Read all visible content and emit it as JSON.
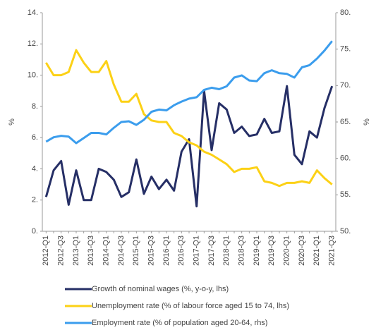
{
  "chart_data": {
    "type": "line",
    "categories": [
      "2012-Q1",
      null,
      "2012-Q3",
      null,
      "2013-Q1",
      null,
      "2013-Q3",
      null,
      "2014-Q1",
      null,
      "2014-Q3",
      null,
      "2015-Q1",
      null,
      "2015-Q3",
      null,
      "2016-Q1",
      null,
      "2016-Q3",
      null,
      "2017-Q1",
      null,
      "2017-Q3",
      null,
      "2018-Q1",
      null,
      "2018-Q3",
      null,
      "2019-Q1",
      null,
      "2019-Q3",
      null,
      "2020-Q1",
      null,
      "2020-Q3",
      null,
      "2021-Q1",
      null,
      "2021-Q3"
    ],
    "ylabel": "%",
    "y2label": "%",
    "ylim": [
      0,
      14
    ],
    "yticks": [
      {
        "value": 0,
        "label": "0."
      },
      {
        "value": 2,
        "label": "2."
      },
      {
        "value": 4,
        "label": "4."
      },
      {
        "value": 6,
        "label": "6."
      },
      {
        "value": 8,
        "label": "8."
      },
      {
        "value": 10,
        "label": "10."
      },
      {
        "value": 12,
        "label": "12."
      },
      {
        "value": 14,
        "label": "14."
      }
    ],
    "y2lim": [
      50,
      80
    ],
    "y2ticks": [
      {
        "value": 50,
        "label": "50."
      },
      {
        "value": 55,
        "label": "55."
      },
      {
        "value": 60,
        "label": "60."
      },
      {
        "value": 65,
        "label": "65."
      },
      {
        "value": 70,
        "label": "70."
      },
      {
        "value": 75,
        "label": "75."
      },
      {
        "value": 80,
        "label": "80."
      }
    ],
    "series": [
      {
        "name": "Growth of nominal wages (%, y-o-y, lhs)",
        "color": "#262f66",
        "values": [
          2.2,
          3.9,
          4.5,
          1.7,
          3.9,
          2.0,
          2.0,
          4.0,
          3.8,
          3.3,
          2.2,
          2.5,
          4.6,
          2.4,
          3.5,
          2.7,
          3.3,
          2.6,
          5.1,
          5.9,
          1.6,
          9.0,
          5.2,
          8.2,
          7.8,
          6.3,
          6.7,
          6.1,
          6.2,
          7.2,
          6.3,
          6.4,
          9.3,
          4.9,
          4.3,
          6.4,
          6.0,
          7.9,
          9.3
        ]
      },
      {
        "name": "Unemployment rate (% of labour force aged 15 to 74, lhs)",
        "color": "#fcd116",
        "values": [
          10.8,
          10.0,
          10.0,
          10.2,
          11.6,
          10.8,
          10.2,
          10.2,
          10.9,
          9.4,
          8.3,
          8.3,
          8.8,
          7.5,
          7.1,
          7.0,
          7.0,
          6.3,
          6.1,
          5.7,
          5.5,
          5.1,
          4.9,
          4.6,
          4.3,
          3.8,
          4.0,
          4.0,
          4.1,
          3.2,
          3.1,
          2.9,
          3.1,
          3.1,
          3.2,
          3.1,
          3.9,
          3.4,
          3.0
        ]
      },
      {
        "name": "Employment rate (% of population aged 20-64, rhs)",
        "color": "#3b9ded",
        "axis": "y2",
        "values": [
          62.3,
          62.9,
          63.1,
          63.0,
          62.1,
          62.8,
          63.5,
          63.5,
          63.3,
          64.2,
          65.0,
          65.1,
          64.6,
          65.3,
          66.4,
          66.7,
          66.6,
          67.3,
          67.8,
          68.2,
          68.4,
          69.4,
          69.7,
          69.5,
          69.9,
          71.1,
          71.4,
          70.7,
          70.6,
          71.7,
          72.1,
          71.7,
          71.6,
          71.1,
          72.5,
          72.8,
          73.7,
          74.8,
          76.1
        ]
      }
    ]
  }
}
